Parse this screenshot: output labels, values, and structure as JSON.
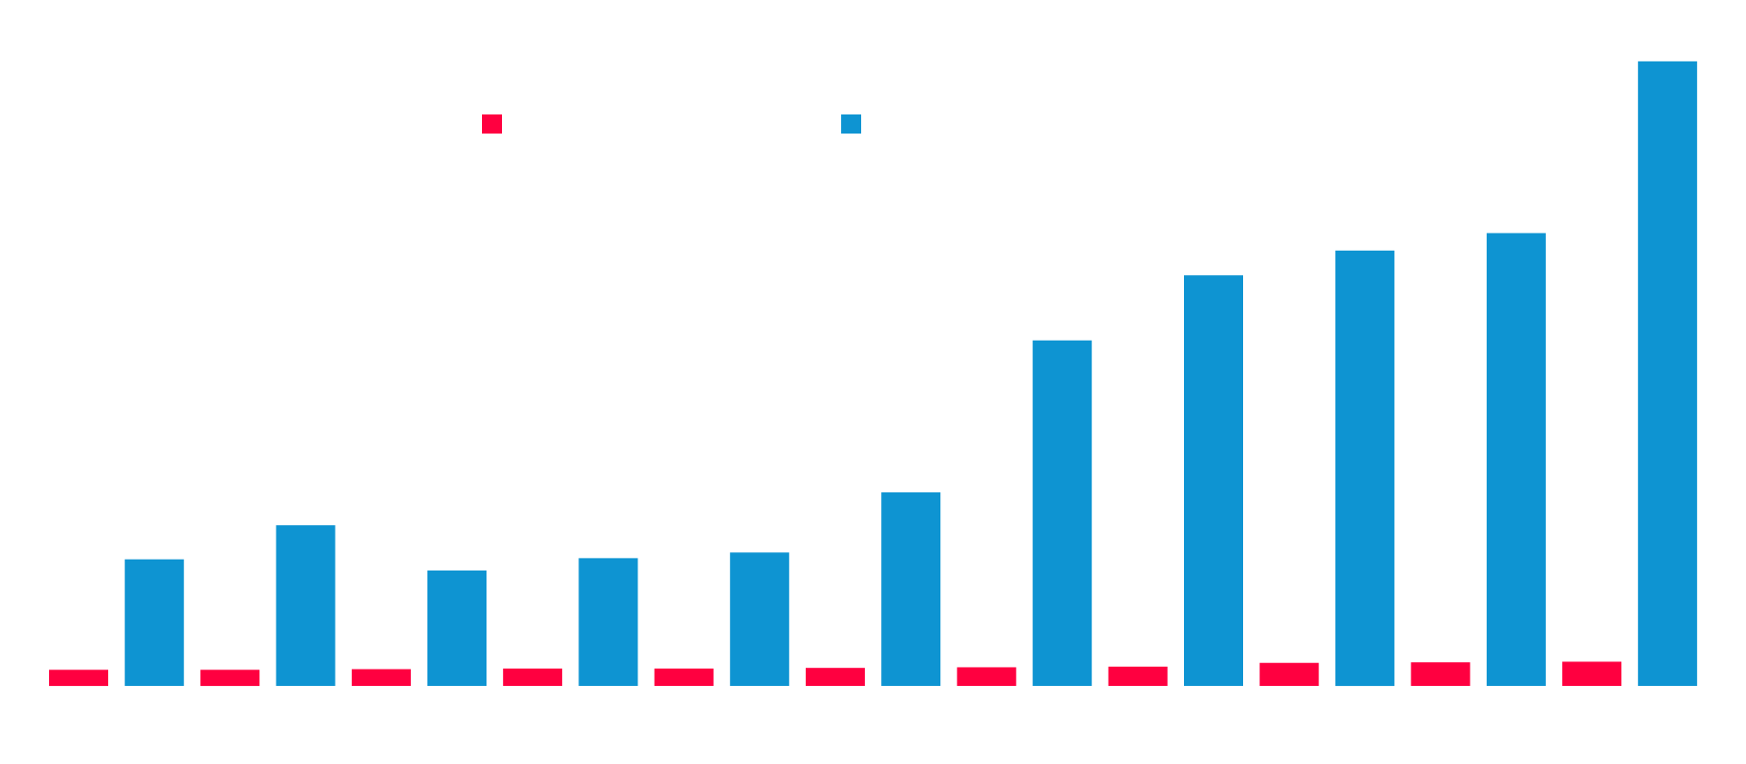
{
  "chart_data": {
    "type": "bar",
    "title": "",
    "xlabel": "",
    "ylabel": "",
    "categories": [
      "",
      "",
      "",
      "",
      "",
      "",
      "",
      "",
      "",
      "",
      ""
    ],
    "series": [
      {
        "color": "#ff0040",
        "values": [
          2.6,
          2.6,
          2.7,
          2.8,
          2.8,
          2.9,
          3.0,
          3.1,
          3.7,
          3.8,
          3.9
        ]
      },
      {
        "color": "#0e94d2",
        "values": [
          20.4,
          25.9,
          18.6,
          20.6,
          21.5,
          31.2,
          55.7,
          66.2,
          70.2,
          73.0,
          100.7
        ]
      }
    ],
    "ylim": [
      0,
      104
    ],
    "grid": false,
    "legend_position": "top"
  }
}
